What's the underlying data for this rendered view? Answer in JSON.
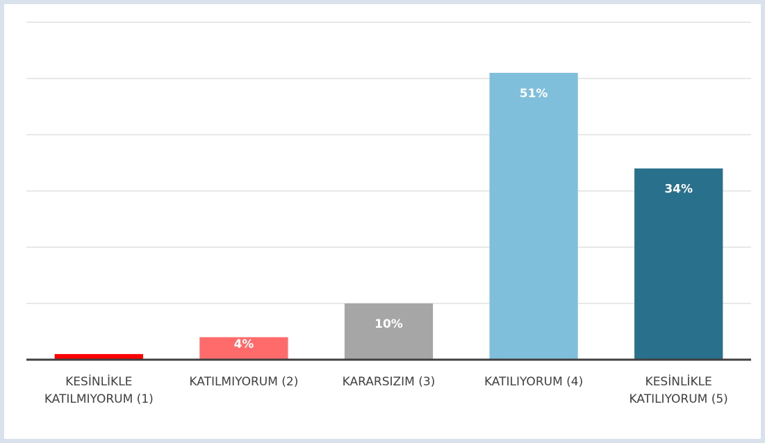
{
  "chart_data": {
    "type": "bar",
    "categories": [
      "KESİNLİKLE KATILMIYORUM (1)",
      "KATILMIYORUM (2)",
      "KARARSIZIM (3)",
      "KATILIYORUM (4)",
      "KESİNLİKLE KATILIYORUM (5)"
    ],
    "values": [
      1,
      4,
      10,
      51,
      34
    ],
    "value_labels": [
      null,
      "4%",
      "10%",
      "51%",
      "34%"
    ],
    "colors": [
      "#ff0000",
      "#ff6b6b",
      "#a6a6a6",
      "#7fbfdc",
      "#28708c"
    ],
    "ylim": [
      0,
      60
    ],
    "yticks": [
      0,
      10,
      20,
      30,
      40,
      50,
      60
    ],
    "grid": true
  }
}
